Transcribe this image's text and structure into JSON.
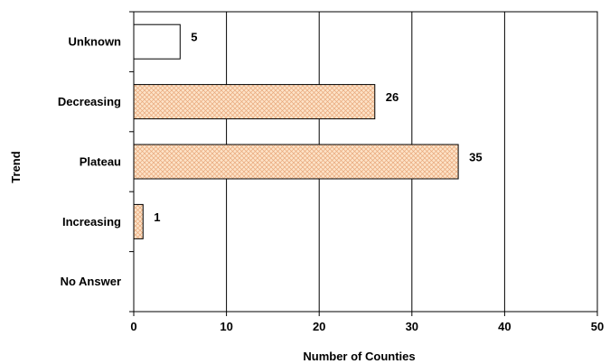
{
  "chart_data": {
    "type": "bar",
    "orientation": "horizontal",
    "categories": [
      "Unknown",
      "Decreasing",
      "Plateau",
      "Increasing",
      "No Answer"
    ],
    "values": [
      5,
      26,
      35,
      1,
      null
    ],
    "data_labels": [
      "5",
      "26",
      "35",
      "1",
      ""
    ],
    "bar_styles": [
      "plain",
      "crosshatch",
      "crosshatch",
      "crosshatch",
      "none"
    ],
    "title": "",
    "xlabel": "Number of Counties",
    "ylabel": "Trend",
    "xlim": [
      0,
      50
    ],
    "x_ticks": [
      "0",
      "10",
      "20",
      "30",
      "40",
      "50"
    ],
    "grid": "vertical",
    "legend": "none"
  },
  "colors": {
    "bar_fill": "#fde3c8",
    "hatch": "#e8a77a",
    "plain_fill": "#ffffff",
    "outline": "#000000",
    "grid": "#000000"
  }
}
